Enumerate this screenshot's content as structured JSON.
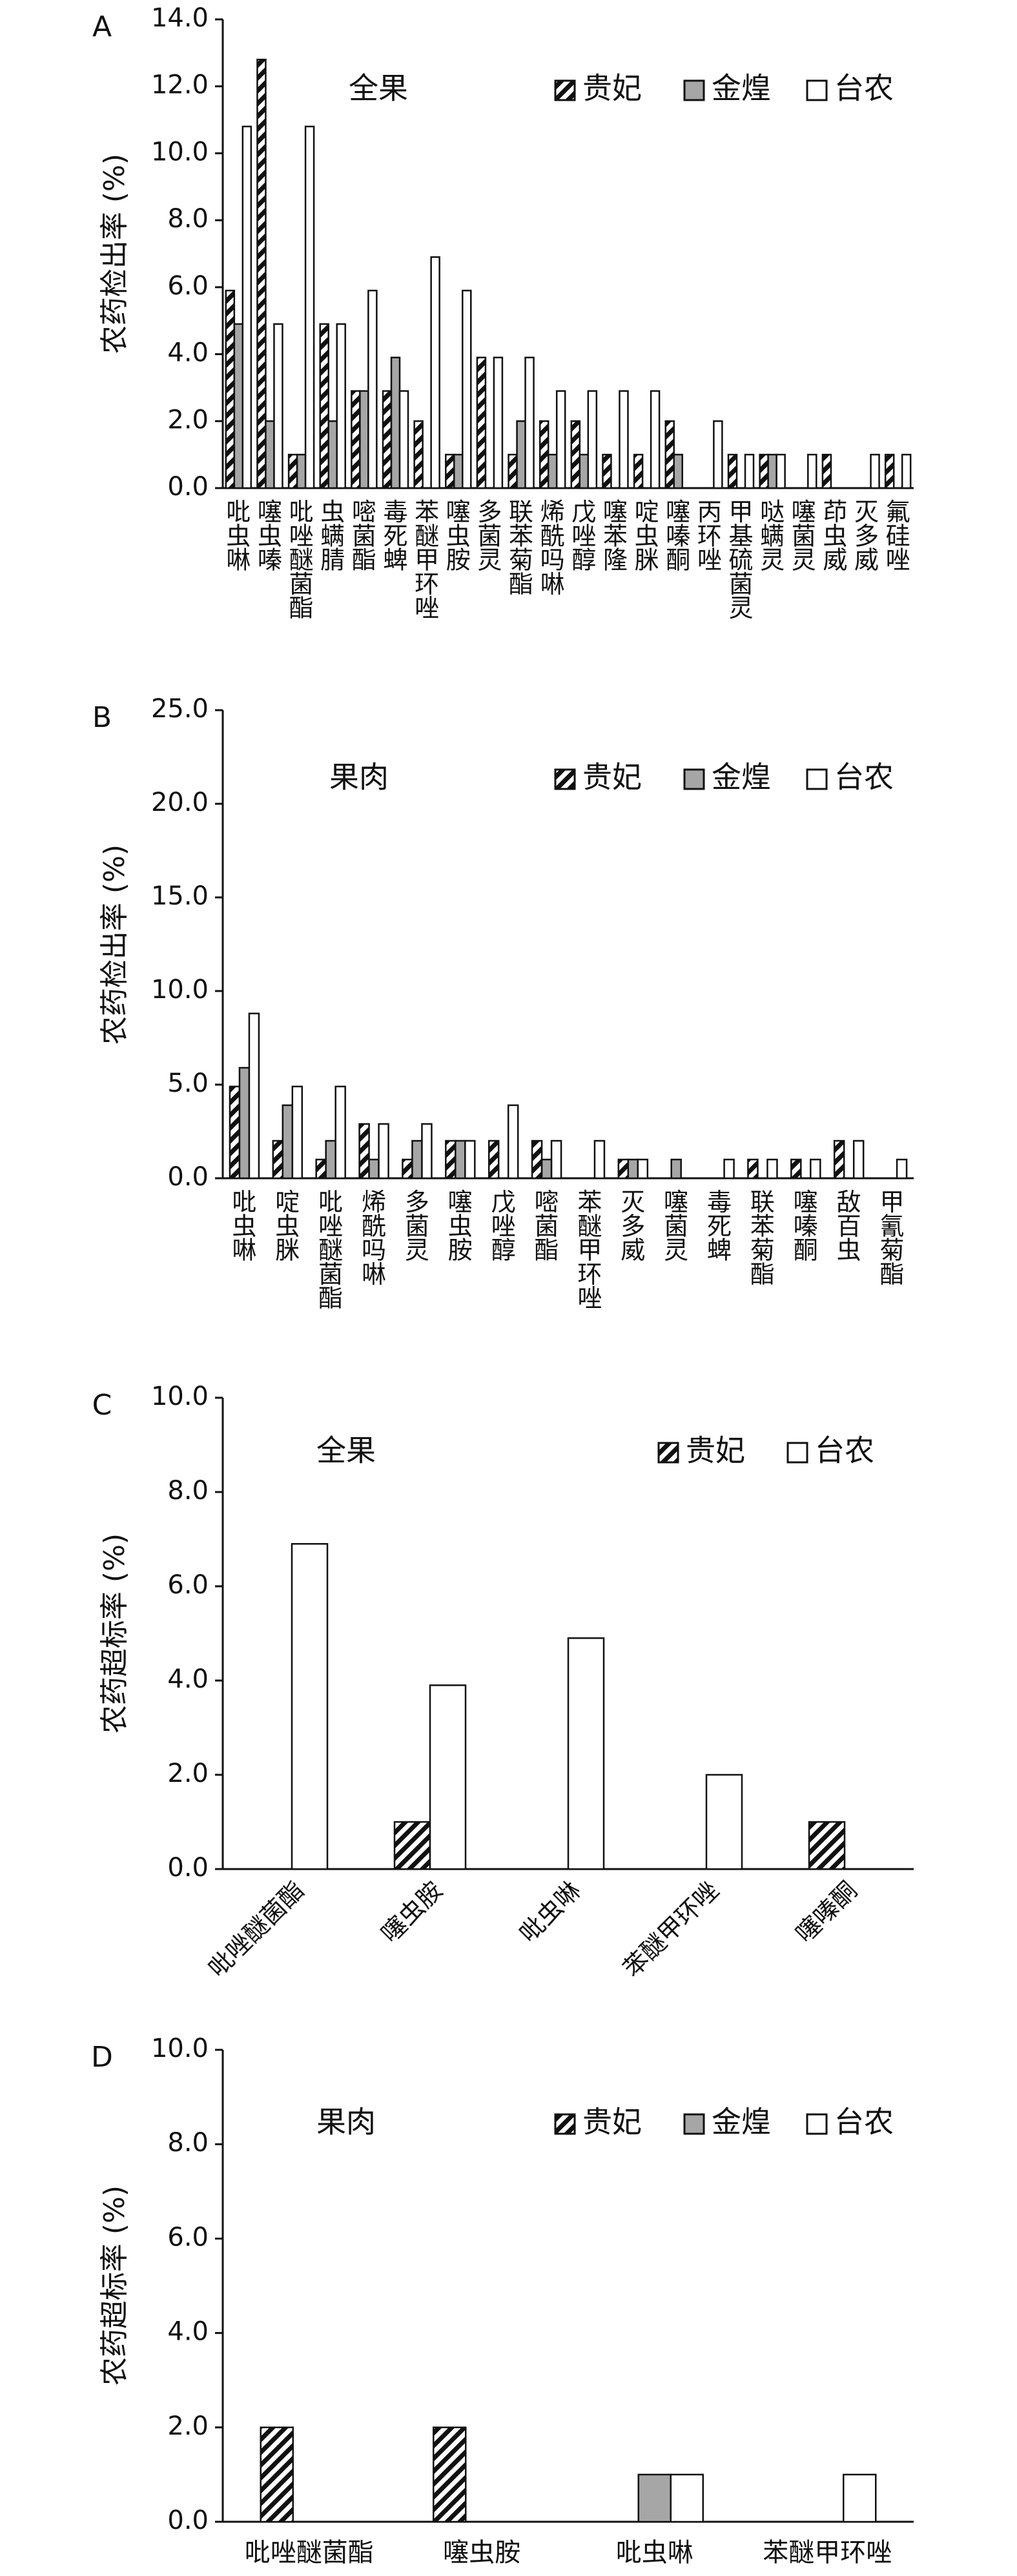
{
  "chart_data": [
    {
      "panel_label": "A",
      "type": "bar",
      "title": "全果",
      "ylabel": "农药检出率 (%)",
      "ylim": [
        0,
        14
      ],
      "yticks": [
        "0.0",
        "2.0",
        "4.0",
        "6.0",
        "8.0",
        "10.0",
        "12.0",
        "14.0"
      ],
      "legend_position": "top-right",
      "categories": [
        "吡虫啉",
        "噻虫嗪",
        "吡唑醚菌酯",
        "虫螨腈",
        "嘧菌酯",
        "毒死蜱",
        "苯醚甲环唑",
        "噻虫胺",
        "多菌灵",
        "联苯菊酯",
        "烯酰吗啉",
        "戊唑醇",
        "噻苯隆",
        "啶虫脒",
        "噻嗪酮",
        "丙环唑",
        "甲基硫菌灵",
        "哒螨灵",
        "噻菌灵",
        "茚虫威",
        "灭多威",
        "氟硅唑"
      ],
      "series": [
        {
          "name": "贵妃",
          "values": [
            5.9,
            12.8,
            1.0,
            4.9,
            2.9,
            2.9,
            2.0,
            1.0,
            3.9,
            1.0,
            2.0,
            2.0,
            1.0,
            1.0,
            2.0,
            0,
            1.0,
            1.0,
            0,
            1.0,
            0,
            1.0
          ]
        },
        {
          "name": "金煌",
          "values": [
            4.9,
            2.0,
            1.0,
            2.0,
            2.9,
            3.9,
            0,
            1.0,
            0,
            2.0,
            1.0,
            1.0,
            0,
            0,
            1.0,
            0,
            0,
            1.0,
            0,
            0,
            0,
            0
          ]
        },
        {
          "name": "台农",
          "values": [
            10.8,
            4.9,
            10.8,
            4.9,
            5.9,
            2.9,
            6.9,
            5.9,
            3.9,
            3.9,
            2.9,
            2.9,
            2.9,
            2.9,
            0,
            2.0,
            1.0,
            1.0,
            1.0,
            0,
            1.0,
            1.0
          ]
        }
      ]
    },
    {
      "panel_label": "B",
      "type": "bar",
      "title": "果肉",
      "ylabel": "农药检出率 (%)",
      "ylim": [
        0,
        25
      ],
      "yticks": [
        "0.0",
        "5.0",
        "10.0",
        "15.0",
        "20.0",
        "25.0"
      ],
      "legend_position": "top-right",
      "categories": [
        "吡虫啉",
        "啶虫脒",
        "吡唑醚菌酯",
        "烯酰吗啉",
        "多菌灵",
        "噻虫胺",
        "戊唑醇",
        "嘧菌酯",
        "苯醚甲环唑",
        "灭多威",
        "噻菌灵",
        "毒死蜱",
        "联苯菊酯",
        "噻嗪酮",
        "敌百虫",
        "甲氰菊酯"
      ],
      "series": [
        {
          "name": "贵妃",
          "values": [
            4.9,
            2.0,
            1.0,
            2.9,
            1.0,
            2.0,
            2.0,
            2.0,
            0,
            1.0,
            0,
            0,
            1.0,
            1.0,
            2.0,
            0
          ]
        },
        {
          "name": "金煌",
          "values": [
            5.9,
            3.9,
            2.0,
            1.0,
            2.0,
            2.0,
            0,
            1.0,
            0,
            1.0,
            1.0,
            0,
            0,
            0,
            0,
            0
          ]
        },
        {
          "name": "台农",
          "values": [
            8.8,
            4.9,
            4.9,
            2.9,
            2.9,
            2.0,
            3.9,
            2.0,
            2.0,
            1.0,
            0,
            1.0,
            1.0,
            1.0,
            2.0,
            1.0
          ]
        }
      ]
    },
    {
      "panel_label": "C",
      "type": "bar",
      "title": "全果",
      "ylabel": "农药超标率 (%)",
      "ylim": [
        0,
        10
      ],
      "yticks": [
        "0.0",
        "2.0",
        "4.0",
        "6.0",
        "8.0",
        "10.0"
      ],
      "legend_position": "top-right",
      "categories": [
        "吡唑醚菌酯",
        "噻虫胺",
        "吡虫啉",
        "苯醚甲环唑",
        "噻嗪酮"
      ],
      "series": [
        {
          "name": "贵妃",
          "values": [
            0,
            1.0,
            0,
            0,
            1.0
          ]
        },
        {
          "name": "台农",
          "values": [
            6.9,
            3.9,
            4.9,
            2.0,
            0
          ]
        }
      ]
    },
    {
      "panel_label": "D",
      "type": "bar",
      "title": "果肉",
      "ylabel": "农药超标率 (%)",
      "ylim": [
        0,
        10
      ],
      "yticks": [
        "0.0",
        "2.0",
        "4.0",
        "6.0",
        "8.0",
        "10.0"
      ],
      "legend_position": "top-right",
      "categories": [
        "吡唑醚菌酯",
        "噻虫胺",
        "吡虫啉",
        "苯醚甲环唑"
      ],
      "series": [
        {
          "name": "贵妃",
          "values": [
            2.0,
            2.0,
            0,
            0
          ]
        },
        {
          "name": "金煌",
          "values": [
            0,
            0,
            1.0,
            0
          ]
        },
        {
          "name": "台农",
          "values": [
            0,
            0,
            1.0,
            1.0
          ]
        }
      ]
    }
  ],
  "colors": {
    "axis": "#111111",
    "bar_stroke": "#111111",
    "guifei_hatch": "#111111",
    "jinhuang_fill": "#a6a6a6",
    "tainong_fill": "#ffffff"
  }
}
